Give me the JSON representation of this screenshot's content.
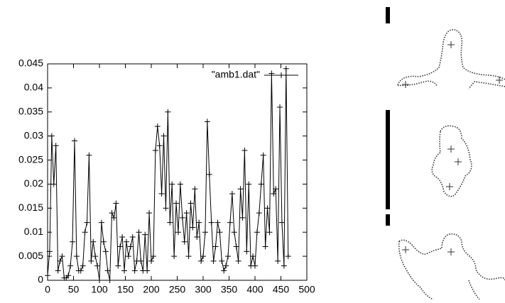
{
  "chart_data": {
    "type": "line",
    "x": [
      0,
      4,
      8,
      12,
      16,
      20,
      24,
      28,
      32,
      36,
      40,
      44,
      48,
      52,
      56,
      60,
      64,
      68,
      72,
      76,
      80,
      84,
      88,
      92,
      96,
      100,
      104,
      108,
      112,
      116,
      120,
      124,
      128,
      132,
      136,
      140,
      144,
      148,
      152,
      156,
      160,
      164,
      168,
      172,
      176,
      180,
      184,
      188,
      192,
      196,
      200,
      204,
      208,
      212,
      216,
      220,
      224,
      228,
      232,
      236,
      240,
      244,
      248,
      252,
      256,
      260,
      264,
      268,
      272,
      276,
      280,
      284,
      288,
      292,
      296,
      300,
      304,
      308,
      312,
      316,
      320,
      324,
      328,
      332,
      336,
      340,
      344,
      348,
      352,
      356,
      360,
      364,
      368,
      372,
      376,
      380,
      384,
      388,
      392,
      396,
      400,
      404,
      408,
      412,
      416,
      420,
      424,
      428,
      432,
      436,
      440,
      444,
      448,
      452,
      456,
      460,
      464
    ],
    "series": [
      {
        "name": "\"amb1.dat\"",
        "color": "#000000",
        "values": [
          0.001,
          0.006,
          0.03,
          0.02,
          0.028,
          0.002,
          0.004,
          0.005,
          0.0005,
          0.0005,
          0.001,
          0.003,
          0.008,
          0.029,
          0.005,
          0.002,
          0.002,
          0.003,
          0.01,
          0.012,
          0.026,
          0.004,
          0.008,
          0.005,
          0.003,
          0.0,
          0.012,
          0.008,
          0.006,
          0.002,
          0.0,
          0.014,
          0.013,
          0.016,
          0.003,
          0.007,
          0.009,
          0.002,
          0.008,
          0.005,
          0.007,
          0.009,
          0.002,
          0.004,
          0.01,
          0.004,
          0.002,
          0.0095,
          0.002,
          0.014,
          0.004,
          0.005,
          0.027,
          0.032,
          0.028,
          0.018,
          0.03,
          0.015,
          0.035,
          0.012,
          0.02,
          0.005,
          0.016,
          0.01,
          0.02,
          0.013,
          0.008,
          0.014,
          0.005,
          0.016,
          0.011,
          0.019,
          0.009,
          0.012,
          0.004,
          0.005,
          0.01,
          0.033,
          0.022,
          0.012,
          0.004,
          0.007,
          0.012,
          0.01,
          0.004,
          0.002,
          0.003,
          0.005,
          0.012,
          0.018,
          0.01,
          0.007,
          0.004,
          0.019,
          0.013,
          0.027,
          0.006,
          0.02,
          0.003,
          0.005,
          0.003,
          0.01,
          0.014,
          0.02,
          0.026,
          0.007,
          0.015,
          0.01,
          0.043,
          0.018,
          0.019,
          0.004,
          0.036,
          0.012,
          0.003,
          0.044,
          0.005
        ]
      }
    ],
    "xlim": [
      0,
      500
    ],
    "xticks": [
      0,
      50,
      100,
      150,
      200,
      250,
      300,
      350,
      400,
      450,
      500
    ],
    "ylim": [
      0,
      0.045
    ],
    "yticks": [
      0,
      0.005,
      0.01,
      0.015,
      0.02,
      0.025,
      0.03,
      0.035,
      0.04,
      0.045
    ],
    "legend": "top-right"
  }
}
